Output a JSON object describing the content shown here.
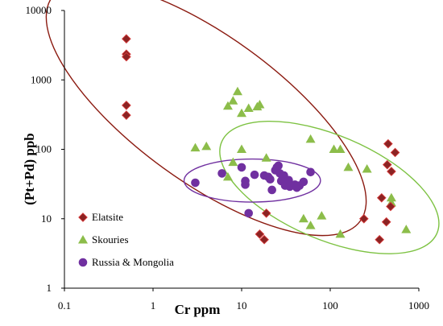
{
  "chart_data": {
    "type": "scatter",
    "xlabel": "Cr ppm",
    "ylabel": "(Pt+Pd) ppb",
    "x_scale": "log",
    "y_scale": "log",
    "xlim": [
      0.1,
      1000
    ],
    "ylim": [
      1,
      10000
    ],
    "x_ticks": [
      "0.1",
      "1",
      "10",
      "100",
      "1000"
    ],
    "y_ticks": [
      "1",
      "10",
      "100",
      "1000",
      "10000"
    ],
    "grid": false,
    "legend_position": "bottom-left",
    "series": [
      {
        "name": "Elatsite",
        "marker": "diamond",
        "color": "#8b2323",
        "points": [
          [
            0.5,
            3900
          ],
          [
            0.5,
            2350
          ],
          [
            0.5,
            2150
          ],
          [
            0.5,
            430
          ],
          [
            0.5,
            310
          ],
          [
            16,
            6
          ],
          [
            18,
            5
          ],
          [
            19,
            12
          ],
          [
            240,
            10
          ],
          [
            360,
            5
          ],
          [
            380,
            20
          ],
          [
            440,
            60
          ],
          [
            450,
            120
          ],
          [
            430,
            9
          ],
          [
            480,
            15
          ],
          [
            490,
            48
          ],
          [
            540,
            90
          ]
        ]
      },
      {
        "name": "Skouries",
        "marker": "triangle",
        "color": "#8cbd4a",
        "points": [
          [
            3,
            105
          ],
          [
            4,
            110
          ],
          [
            7,
            420
          ],
          [
            8,
            500
          ],
          [
            9,
            680
          ],
          [
            10,
            330
          ],
          [
            12,
            390
          ],
          [
            15,
            410
          ],
          [
            16,
            440
          ],
          [
            10,
            100
          ],
          [
            8,
            65
          ],
          [
            7,
            40
          ],
          [
            19,
            75
          ],
          [
            50,
            10
          ],
          [
            60,
            8
          ],
          [
            60,
            140
          ],
          [
            80,
            11
          ],
          [
            110,
            100
          ],
          [
            130,
            100
          ],
          [
            160,
            55
          ],
          [
            260,
            52
          ],
          [
            130,
            6
          ],
          [
            490,
            20
          ],
          [
            490,
            17
          ],
          [
            720,
            7
          ]
        ]
      },
      {
        "name": "Russia & Mongolia",
        "marker": "circle",
        "color": "#7030a0",
        "points": [
          [
            3,
            33
          ],
          [
            6,
            45
          ],
          [
            10,
            55
          ],
          [
            11,
            35
          ],
          [
            11,
            31
          ],
          [
            12,
            12
          ],
          [
            14,
            43
          ],
          [
            18,
            42
          ],
          [
            20,
            40
          ],
          [
            21,
            37
          ],
          [
            22,
            26
          ],
          [
            24,
            50
          ],
          [
            25,
            55
          ],
          [
            26,
            58
          ],
          [
            27,
            45
          ],
          [
            28,
            35
          ],
          [
            30,
            42
          ],
          [
            31,
            30
          ],
          [
            34,
            36
          ],
          [
            35,
            29
          ],
          [
            40,
            31
          ],
          [
            42,
            28
          ],
          [
            45,
            30
          ],
          [
            50,
            34
          ],
          [
            60,
            47
          ]
        ]
      }
    ],
    "ellipses": [
      {
        "series": "Elatsite",
        "color": "#8b1a10",
        "cx_log": 0.6,
        "cy_log": 2.58,
        "rx_log": 2.15,
        "ry_log": 1.05,
        "angle": 36
      },
      {
        "series": "Skouries",
        "color": "#7dc242",
        "cx_log": 1.99,
        "cy_log": 1.45,
        "rx_log": 1.32,
        "ry_log": 0.75,
        "angle": 23
      },
      {
        "series": "Russia & Mongolia",
        "color": "#7030a0",
        "cx_log": 1.12,
        "cy_log": 1.55,
        "rx_log": 0.77,
        "ry_log": 0.31,
        "angle": 0
      }
    ]
  }
}
